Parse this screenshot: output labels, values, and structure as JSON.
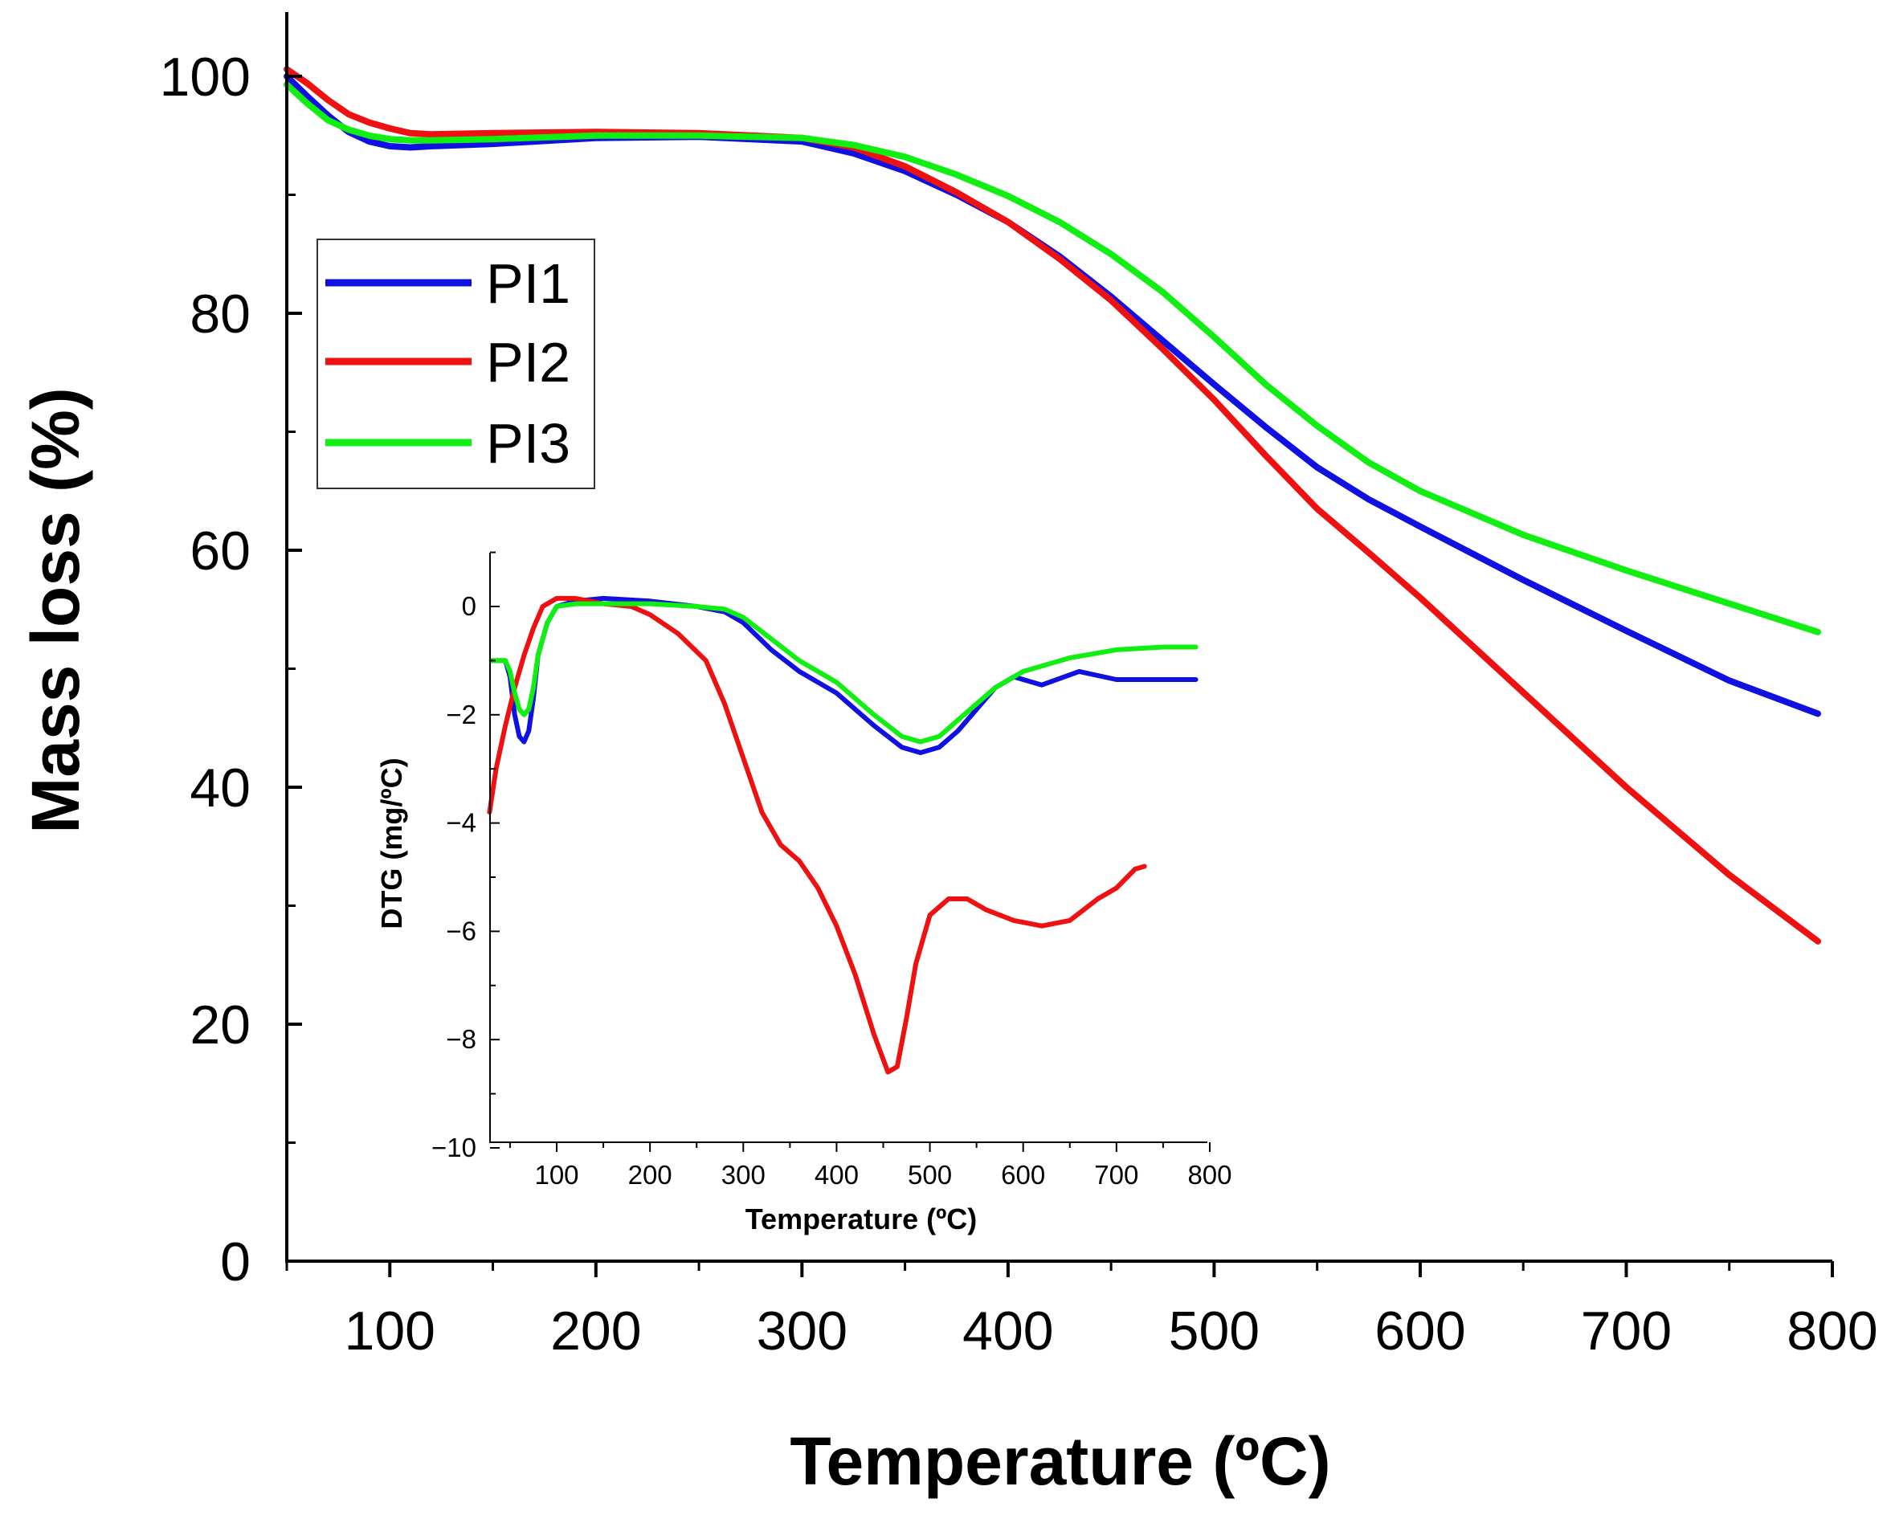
{
  "chart_data": [
    {
      "type": "line",
      "xlabel": "Temperature (ºC)",
      "ylabel": "Mass loss (%)",
      "xlim": [
        50,
        800
      ],
      "ylim": [
        0,
        105
      ],
      "xticks": [
        "100",
        "200",
        "300",
        "400",
        "500",
        "600",
        "700",
        "800"
      ],
      "yticks": [
        "0",
        "20",
        "40",
        "60",
        "80",
        "100"
      ],
      "legend": {
        "position": "top-left"
      },
      "series": [
        {
          "name": "PI1",
          "color": "#1010e0",
          "x": [
            50,
            60,
            70,
            80,
            90,
            100,
            110,
            120,
            150,
            200,
            250,
            300,
            325,
            350,
            375,
            400,
            425,
            450,
            475,
            500,
            525,
            550,
            575,
            600,
            650,
            700,
            750,
            793
          ],
          "y": [
            100,
            98.3,
            96.7,
            95.3,
            94.5,
            94.1,
            94.0,
            94.1,
            94.3,
            94.8,
            94.9,
            94.5,
            93.5,
            92.0,
            90.0,
            87.7,
            84.8,
            81.4,
            77.7,
            74.0,
            70.4,
            67.0,
            64.3,
            62.0,
            57.5,
            53.2,
            49.0,
            46.2
          ]
        },
        {
          "name": "PI2",
          "color": "#ee1111",
          "x": [
            50,
            60,
            70,
            80,
            90,
            100,
            110,
            120,
            150,
            200,
            250,
            300,
            325,
            350,
            375,
            400,
            425,
            450,
            475,
            500,
            525,
            550,
            575,
            600,
            650,
            700,
            750,
            793
          ],
          "y": [
            100.6,
            99.4,
            98.0,
            96.8,
            96.1,
            95.6,
            95.2,
            95.1,
            95.2,
            95.3,
            95.2,
            94.8,
            94.0,
            92.4,
            90.2,
            87.7,
            84.6,
            81.1,
            77.0,
            72.7,
            68.0,
            63.5,
            59.8,
            56.0,
            48.0,
            40.0,
            32.6,
            27.0
          ]
        },
        {
          "name": "PI3",
          "color": "#11ee11",
          "x": [
            50,
            60,
            70,
            80,
            90,
            100,
            110,
            120,
            150,
            200,
            250,
            300,
            325,
            350,
            375,
            400,
            425,
            450,
            475,
            500,
            525,
            550,
            575,
            600,
            650,
            700,
            750,
            793
          ],
          "y": [
            99.3,
            97.7,
            96.3,
            95.5,
            95.0,
            94.7,
            94.6,
            94.6,
            94.7,
            95.0,
            95.0,
            94.8,
            94.2,
            93.2,
            91.7,
            89.9,
            87.7,
            85.0,
            81.8,
            78.0,
            74.0,
            70.5,
            67.4,
            65.0,
            61.3,
            58.3,
            55.5,
            53.1
          ]
        }
      ]
    },
    {
      "type": "line",
      "xlabel": "Temperature (ºC)",
      "ylabel": "DTG (mg/ºC)",
      "xlim": [
        25,
        800
      ],
      "ylim": [
        -10,
        1
      ],
      "xticks": [
        "100",
        "200",
        "300",
        "400",
        "500",
        "600",
        "700",
        "800"
      ],
      "yticks": [
        "−10",
        "−8",
        "−6",
        "−4",
        "−2",
        "0"
      ],
      "series": [
        {
          "name": "PI1",
          "color": "#1010e0",
          "x": [
            30,
            40,
            45,
            50,
            55,
            60,
            65,
            70,
            75,
            80,
            90,
            100,
            120,
            150,
            200,
            250,
            280,
            300,
            330,
            360,
            400,
            440,
            470,
            490,
            510,
            530,
            550,
            570,
            590,
            620,
            660,
            700,
            750,
            785
          ],
          "y": [
            -1.0,
            -1.0,
            -1.0,
            -1.3,
            -2.0,
            -2.4,
            -2.5,
            -2.3,
            -1.7,
            -0.9,
            -0.3,
            0.0,
            0.1,
            0.15,
            0.1,
            0.0,
            -0.1,
            -0.3,
            -0.8,
            -1.2,
            -1.6,
            -2.2,
            -2.6,
            -2.7,
            -2.6,
            -2.3,
            -1.9,
            -1.5,
            -1.3,
            -1.45,
            -1.2,
            -1.35,
            -1.35,
            -1.35
          ]
        },
        {
          "name": "PI2",
          "color": "#ee1111",
          "x": [
            28,
            35,
            45,
            55,
            65,
            75,
            85,
            100,
            120,
            150,
            180,
            200,
            230,
            260,
            280,
            300,
            320,
            340,
            360,
            380,
            400,
            420,
            440,
            455,
            465,
            475,
            485,
            500,
            520,
            540,
            560,
            590,
            620,
            650,
            680,
            700,
            720,
            730
          ],
          "y": [
            -3.8,
            -3.0,
            -2.2,
            -1.5,
            -0.9,
            -0.4,
            0.0,
            0.15,
            0.15,
            0.05,
            0.0,
            -0.15,
            -0.5,
            -1.0,
            -1.8,
            -2.8,
            -3.8,
            -4.4,
            -4.7,
            -5.2,
            -5.9,
            -6.8,
            -7.9,
            -8.6,
            -8.5,
            -7.6,
            -6.6,
            -5.7,
            -5.4,
            -5.4,
            -5.6,
            -5.8,
            -5.9,
            -5.8,
            -5.4,
            -5.2,
            -4.85,
            -4.8
          ]
        },
        {
          "name": "PI3",
          "color": "#11ee11",
          "x": [
            30,
            40,
            45,
            50,
            55,
            60,
            65,
            70,
            75,
            80,
            90,
            100,
            120,
            150,
            200,
            250,
            280,
            300,
            330,
            360,
            400,
            440,
            470,
            490,
            510,
            530,
            550,
            570,
            600,
            650,
            700,
            750,
            785
          ],
          "y": [
            -1.0,
            -1.0,
            -1.0,
            -1.2,
            -1.6,
            -1.9,
            -2.0,
            -1.9,
            -1.5,
            -0.9,
            -0.3,
            0.0,
            0.05,
            0.05,
            0.05,
            0.0,
            -0.05,
            -0.2,
            -0.6,
            -1.0,
            -1.4,
            -2.0,
            -2.4,
            -2.5,
            -2.4,
            -2.1,
            -1.8,
            -1.5,
            -1.2,
            -0.95,
            -0.8,
            -0.75,
            -0.75
          ]
        }
      ]
    }
  ]
}
